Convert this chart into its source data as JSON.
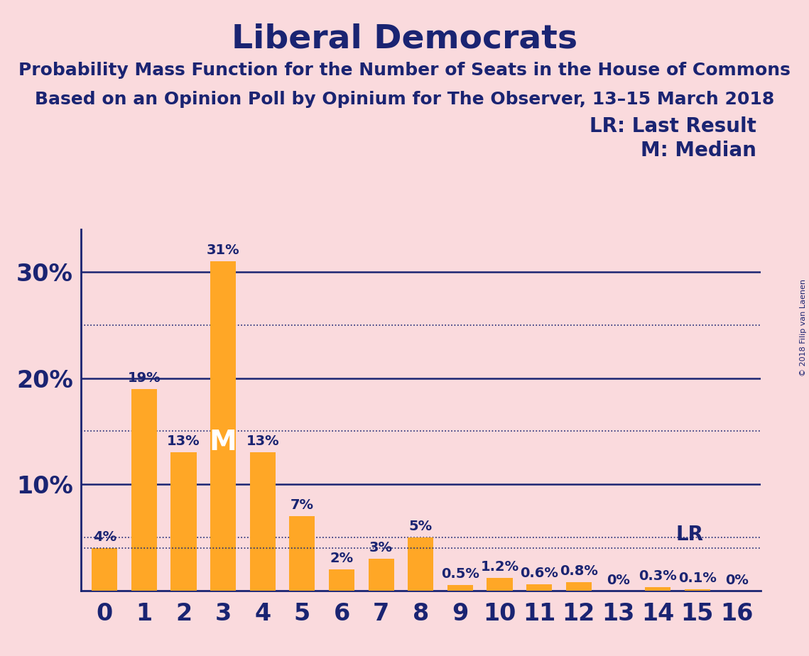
{
  "title": "Liberal Democrats",
  "subtitle1": "Probability Mass Function for the Number of Seats in the House of Commons",
  "subtitle2": "Based on an Opinion Poll by Opinium for The Observer, 13–15 March 2018",
  "copyright": "© 2018 Filip van Laenen",
  "categories": [
    0,
    1,
    2,
    3,
    4,
    5,
    6,
    7,
    8,
    9,
    10,
    11,
    12,
    13,
    14,
    15,
    16
  ],
  "values": [
    4,
    19,
    13,
    31,
    13,
    7,
    2,
    3,
    5,
    0.5,
    1.2,
    0.6,
    0.8,
    0,
    0.3,
    0.1,
    0
  ],
  "labels": [
    "4%",
    "19%",
    "13%",
    "31%",
    "13%",
    "7%",
    "2%",
    "3%",
    "5%",
    "0.5%",
    "1.2%",
    "0.6%",
    "0.8%",
    "0%",
    "0.3%",
    "0.1%",
    "0%"
  ],
  "bar_color": "#FFA726",
  "bg_color": "#FADADD",
  "text_color": "#1a2472",
  "axis_color": "#1a2472",
  "solid_grid_lines": [
    10,
    20,
    30
  ],
  "dotted_grid_lines": [
    5,
    15,
    25
  ],
  "lr_value": 4,
  "median_bar": 3,
  "ylim": [
    0,
    34
  ],
  "ytick_values": [
    10,
    20,
    30
  ],
  "ylabel_labels": [
    "10%",
    "20%",
    "30%"
  ],
  "legend_lr": "LR: Last Result",
  "legend_m": "M: Median",
  "bar_width": 0.65,
  "title_fontsize": 34,
  "subtitle_fontsize": 18,
  "axis_tick_fontsize": 24,
  "label_fontsize": 14,
  "legend_fontsize": 20
}
